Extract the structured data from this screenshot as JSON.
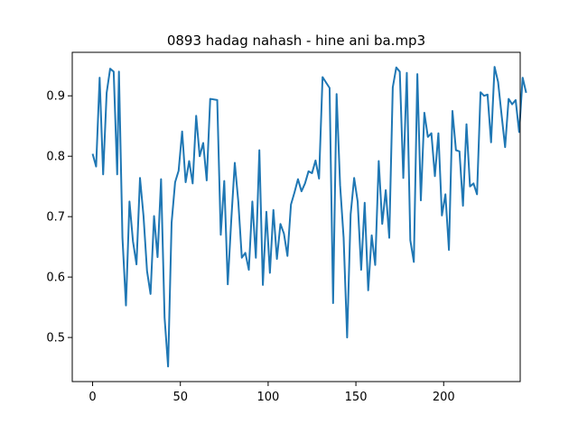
{
  "chart_data": {
    "type": "line",
    "title": "0893 hadag nahash - hine ani ba.mp3",
    "xlabel": "",
    "ylabel": "",
    "xlim": [
      -11.6,
      243.6
    ],
    "ylim": [
      0.427,
      0.972
    ],
    "x_ticks": [
      0,
      50,
      100,
      150,
      200
    ],
    "y_ticks": [
      0.5,
      0.6,
      0.7,
      0.8,
      0.9
    ],
    "x_tick_labels": [
      "0",
      "50",
      "100",
      "150",
      "200"
    ],
    "y_tick_labels": [
      "0.5",
      "0.6",
      "0.7",
      "0.8",
      "0.9"
    ],
    "grid": false,
    "legend": "none",
    "series": [
      {
        "color": "#1f77b4",
        "points": [
          [
            0,
            0.804
          ],
          [
            2,
            0.783
          ],
          [
            4,
            0.93
          ],
          [
            6,
            0.77
          ],
          [
            8,
            0.905
          ],
          [
            10,
            0.945
          ],
          [
            12,
            0.94
          ],
          [
            14,
            0.77
          ],
          [
            15,
            0.94
          ],
          [
            17,
            0.665
          ],
          [
            19,
            0.553
          ],
          [
            21,
            0.725
          ],
          [
            23,
            0.659
          ],
          [
            25,
            0.621
          ],
          [
            27,
            0.764
          ],
          [
            29,
            0.701
          ],
          [
            31,
            0.61
          ],
          [
            33,
            0.572
          ],
          [
            35,
            0.701
          ],
          [
            37,
            0.633
          ],
          [
            39,
            0.762
          ],
          [
            41,
            0.533
          ],
          [
            43,
            0.452
          ],
          [
            45,
            0.69
          ],
          [
            47,
            0.757
          ],
          [
            49,
            0.776
          ],
          [
            51,
            0.841
          ],
          [
            53,
            0.757
          ],
          [
            55,
            0.792
          ],
          [
            57,
            0.755
          ],
          [
            59,
            0.867
          ],
          [
            61,
            0.8
          ],
          [
            63,
            0.822
          ],
          [
            65,
            0.76
          ],
          [
            67,
            0.895
          ],
          [
            71,
            0.893
          ],
          [
            73,
            0.67
          ],
          [
            75,
            0.759
          ],
          [
            77,
            0.588
          ],
          [
            79,
            0.695
          ],
          [
            81,
            0.789
          ],
          [
            83,
            0.725
          ],
          [
            85,
            0.632
          ],
          [
            87,
            0.64
          ],
          [
            89,
            0.612
          ],
          [
            91,
            0.725
          ],
          [
            93,
            0.632
          ],
          [
            95,
            0.81
          ],
          [
            97,
            0.587
          ],
          [
            99,
            0.708
          ],
          [
            101,
            0.607
          ],
          [
            103,
            0.711
          ],
          [
            105,
            0.63
          ],
          [
            107,
            0.688
          ],
          [
            109,
            0.672
          ],
          [
            111,
            0.635
          ],
          [
            113,
            0.72
          ],
          [
            115,
            0.74
          ],
          [
            117,
            0.762
          ],
          [
            119,
            0.742
          ],
          [
            121,
            0.755
          ],
          [
            123,
            0.775
          ],
          [
            125,
            0.772
          ],
          [
            127,
            0.793
          ],
          [
            129,
            0.763
          ],
          [
            131,
            0.931
          ],
          [
            133,
            0.922
          ],
          [
            135,
            0.913
          ],
          [
            137,
            0.557
          ],
          [
            139,
            0.903
          ],
          [
            141,
            0.752
          ],
          [
            143,
            0.665
          ],
          [
            145,
            0.5
          ],
          [
            147,
            0.704
          ],
          [
            149,
            0.764
          ],
          [
            151,
            0.725
          ],
          [
            153,
            0.612
          ],
          [
            155,
            0.723
          ],
          [
            157,
            0.578
          ],
          [
            159,
            0.669
          ],
          [
            161,
            0.62
          ],
          [
            163,
            0.792
          ],
          [
            165,
            0.688
          ],
          [
            167,
            0.744
          ],
          [
            169,
            0.665
          ],
          [
            171,
            0.914
          ],
          [
            173,
            0.947
          ],
          [
            175,
            0.94
          ],
          [
            177,
            0.764
          ],
          [
            179,
            0.938
          ],
          [
            181,
            0.661
          ],
          [
            183,
            0.625
          ],
          [
            185,
            0.936
          ],
          [
            187,
            0.727
          ],
          [
            189,
            0.872
          ],
          [
            191,
            0.832
          ],
          [
            193,
            0.838
          ],
          [
            195,
            0.767
          ],
          [
            197,
            0.838
          ],
          [
            199,
            0.702
          ],
          [
            201,
            0.737
          ],
          [
            203,
            0.645
          ],
          [
            205,
            0.875
          ],
          [
            207,
            0.81
          ],
          [
            209,
            0.808
          ],
          [
            211,
            0.718
          ],
          [
            213,
            0.853
          ],
          [
            215,
            0.75
          ],
          [
            217,
            0.755
          ],
          [
            219,
            0.737
          ],
          [
            221,
            0.906
          ],
          [
            223,
            0.9
          ],
          [
            225,
            0.902
          ],
          [
            227,
            0.823
          ],
          [
            229,
            0.948
          ],
          [
            231,
            0.923
          ],
          [
            233,
            0.868
          ],
          [
            235,
            0.815
          ],
          [
            237,
            0.895
          ],
          [
            239,
            0.886
          ],
          [
            241,
            0.893
          ],
          [
            243,
            0.84
          ],
          [
            245,
            0.93
          ],
          [
            247,
            0.905
          ]
        ]
      }
    ]
  }
}
